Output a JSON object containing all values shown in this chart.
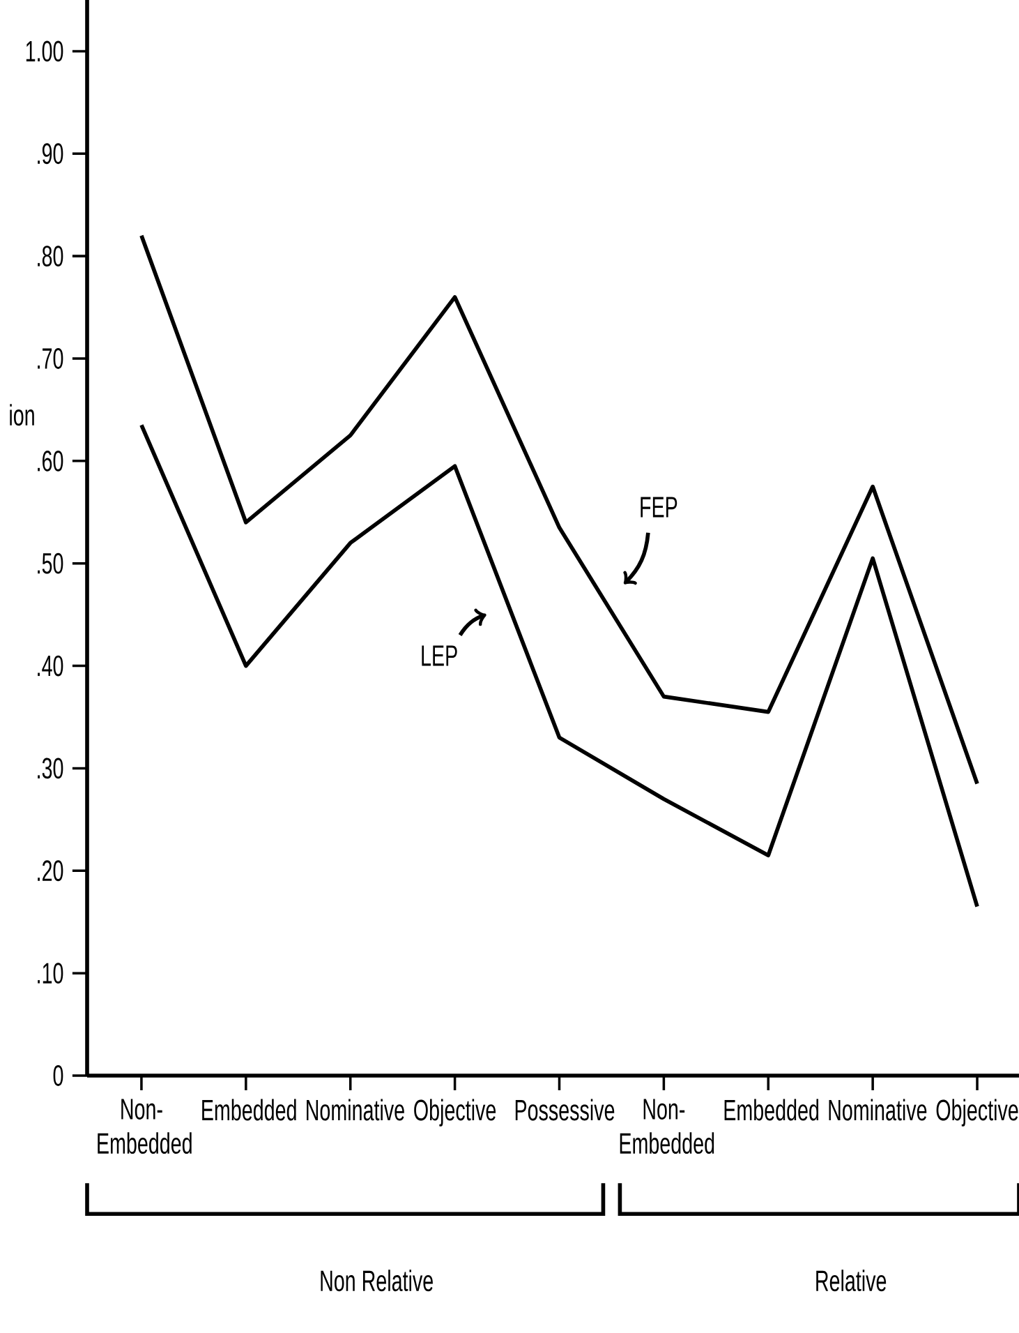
{
  "chart_data": {
    "type": "line",
    "ylabel": "ion",
    "categories": [
      "Non-Embedded",
      "Embedded",
      "Nominative",
      "Objective",
      "Possessive",
      "Non-Embedded",
      "Embedded",
      "Nominative",
      "Objective"
    ],
    "series": [
      {
        "name": "FEP",
        "color": "#000000",
        "values": [
          0.82,
          0.54,
          0.625,
          0.76,
          0.535,
          0.37,
          0.355,
          0.575,
          0.285
        ]
      },
      {
        "name": "LEP",
        "color": "#000000",
        "values": [
          0.635,
          0.4,
          0.52,
          0.595,
          0.33,
          0.27,
          0.215,
          0.505,
          0.165
        ]
      }
    ],
    "ylim": [
      0,
      1.05
    ],
    "yticks": [
      {
        "value": 0,
        "label": "0"
      },
      {
        "value": 0.1,
        "label": ".10"
      },
      {
        "value": 0.2,
        "label": ".20"
      },
      {
        "value": 0.3,
        "label": ".30"
      },
      {
        "value": 0.4,
        "label": ".40"
      },
      {
        "value": 0.5,
        "label": ".50"
      },
      {
        "value": 0.6,
        "label": ".60"
      },
      {
        "value": 0.7,
        "label": ".70"
      },
      {
        "value": 0.8,
        "label": ".80"
      },
      {
        "value": 0.9,
        "label": ".90"
      },
      {
        "value": 1.0,
        "label": "1.00"
      }
    ],
    "annotations": [
      "Non Relative",
      "Relative"
    ]
  }
}
